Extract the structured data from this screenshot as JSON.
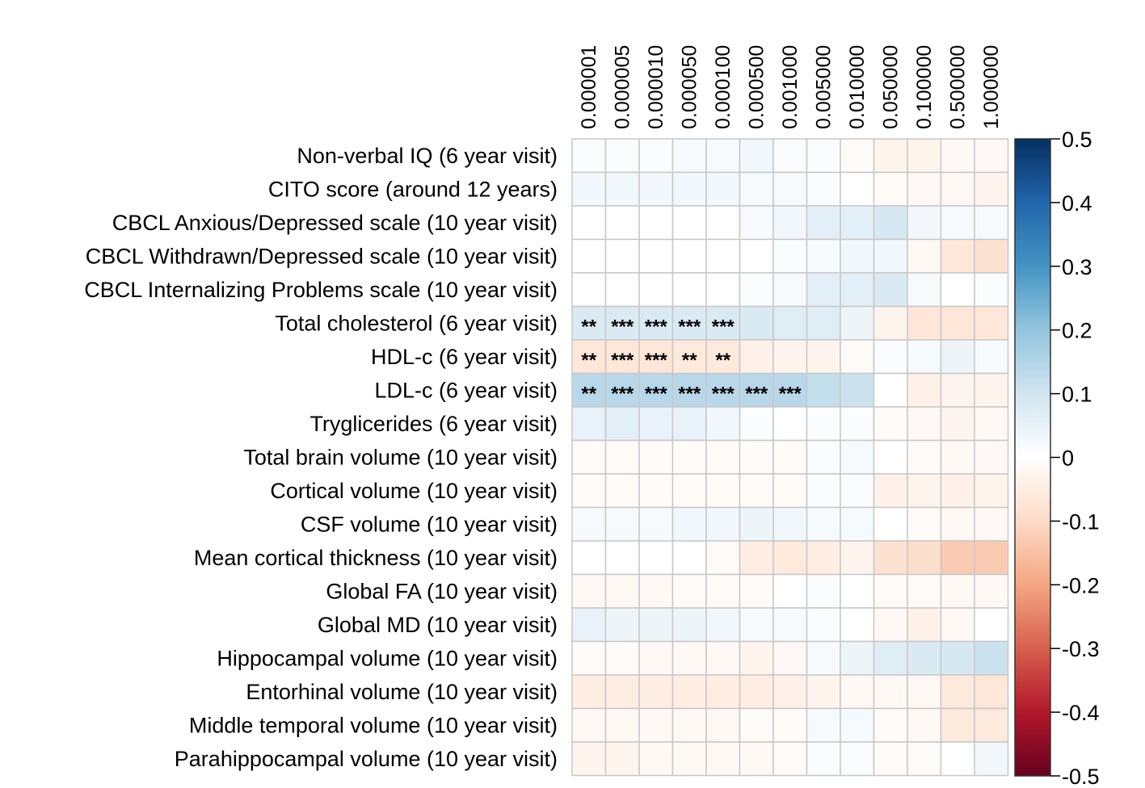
{
  "chart_data": {
    "type": "heatmap",
    "title": "",
    "xlabel": "",
    "ylabel": "",
    "columns": [
      "0.000001",
      "0.000005",
      "0.000010",
      "0.000050",
      "0.000100",
      "0.000500",
      "0.001000",
      "0.005000",
      "0.010000",
      "0.050000",
      "0.100000",
      "0.500000",
      "1.000000"
    ],
    "rows": [
      "Non-verbal IQ (6 year visit)",
      "CITO score (around 12 years)",
      "CBCL Anxious/Depressed scale (10 year visit)",
      "CBCL Withdrawn/Depressed scale (10 year visit)",
      "CBCL Internalizing Problems scale (10 year visit)",
      "Total cholesterol (6 year visit)",
      "HDL-c (6 year visit)",
      "LDL-c (6 year visit)",
      "Tryglicerides (6 year visit)",
      "Total brain volume (10 year visit)",
      "Cortical volume (10 year visit)",
      "CSF volume (10 year visit)",
      "Mean cortical thickness (10 year visit)",
      "Global FA (10 year visit)",
      "Global MD (10 year visit)",
      "Hippocampal volume (10 year visit)",
      "Entorhinal volume (10 year visit)",
      "Middle temporal volume (10 year visit)",
      "Parahippocampal volume (10 year visit)"
    ],
    "values": [
      [
        0.01,
        0.01,
        0.01,
        0.02,
        0.02,
        0.03,
        0.01,
        0.01,
        -0.01,
        -0.03,
        -0.03,
        -0.02,
        -0.02
      ],
      [
        0.03,
        0.03,
        0.03,
        0.03,
        0.03,
        0.02,
        0.02,
        0.01,
        0.0,
        -0.01,
        -0.02,
        -0.02,
        -0.03
      ],
      [
        0.0,
        0.0,
        0.0,
        0.0,
        0.0,
        0.02,
        0.03,
        0.06,
        0.06,
        0.09,
        0.03,
        0.02,
        0.02
      ],
      [
        0.0,
        0.0,
        0.0,
        0.0,
        0.0,
        0.0,
        0.01,
        0.02,
        0.03,
        0.03,
        -0.02,
        -0.07,
        -0.08
      ],
      [
        0.0,
        0.0,
        0.0,
        0.0,
        0.0,
        0.01,
        0.02,
        0.06,
        0.06,
        0.08,
        0.02,
        0.0,
        0.01
      ],
      [
        0.08,
        0.08,
        0.08,
        0.08,
        0.08,
        0.08,
        0.07,
        0.07,
        0.04,
        -0.03,
        -0.07,
        -0.07,
        -0.07
      ],
      [
        -0.07,
        -0.07,
        -0.07,
        -0.06,
        -0.06,
        -0.04,
        -0.03,
        -0.03,
        -0.01,
        0.01,
        0.02,
        0.04,
        0.02
      ],
      [
        0.14,
        0.14,
        0.14,
        0.14,
        0.14,
        0.14,
        0.14,
        0.12,
        0.11,
        0.0,
        -0.04,
        -0.03,
        -0.03
      ],
      [
        0.05,
        0.06,
        0.05,
        0.05,
        0.03,
        0.01,
        0.0,
        0.01,
        0.01,
        -0.01,
        -0.02,
        -0.03,
        -0.02
      ],
      [
        -0.01,
        -0.01,
        -0.01,
        -0.01,
        -0.01,
        -0.01,
        -0.01,
        0.01,
        0.02,
        0.0,
        -0.01,
        -0.02,
        -0.02
      ],
      [
        -0.01,
        -0.01,
        -0.01,
        -0.01,
        -0.01,
        -0.01,
        -0.01,
        0.01,
        0.01,
        -0.04,
        -0.03,
        -0.04,
        -0.03
      ],
      [
        0.02,
        0.02,
        0.02,
        0.03,
        0.03,
        0.04,
        0.03,
        0.02,
        0.02,
        0.0,
        -0.01,
        -0.02,
        -0.02
      ],
      [
        0.0,
        0.0,
        0.0,
        0.0,
        -0.01,
        -0.05,
        -0.06,
        -0.05,
        -0.03,
        -0.08,
        -0.09,
        -0.13,
        -0.13
      ],
      [
        -0.02,
        -0.02,
        -0.02,
        -0.01,
        -0.01,
        -0.01,
        0.0,
        0.01,
        0.0,
        -0.01,
        -0.01,
        -0.02,
        -0.02
      ],
      [
        0.05,
        0.04,
        0.04,
        0.04,
        0.03,
        0.02,
        0.02,
        0.01,
        0.0,
        -0.02,
        -0.04,
        -0.02,
        0.0
      ],
      [
        -0.01,
        -0.01,
        -0.02,
        -0.02,
        -0.02,
        -0.03,
        -0.02,
        0.02,
        0.04,
        0.07,
        0.08,
        0.09,
        0.11
      ],
      [
        -0.05,
        -0.05,
        -0.05,
        -0.05,
        -0.05,
        -0.05,
        -0.04,
        -0.03,
        -0.02,
        -0.02,
        -0.02,
        -0.06,
        -0.07
      ],
      [
        -0.02,
        -0.02,
        -0.02,
        -0.02,
        -0.02,
        -0.01,
        -0.01,
        0.02,
        0.02,
        -0.01,
        -0.02,
        -0.06,
        -0.06
      ],
      [
        -0.03,
        -0.03,
        -0.02,
        -0.02,
        -0.02,
        -0.02,
        -0.01,
        0.01,
        0.01,
        -0.01,
        -0.01,
        0.0,
        0.03
      ]
    ],
    "stars": [
      {
        "row": 5,
        "col": 0,
        "text": "**"
      },
      {
        "row": 5,
        "col": 1,
        "text": "***"
      },
      {
        "row": 5,
        "col": 2,
        "text": "***"
      },
      {
        "row": 5,
        "col": 3,
        "text": "***"
      },
      {
        "row": 5,
        "col": 4,
        "text": "***"
      },
      {
        "row": 6,
        "col": 0,
        "text": "**"
      },
      {
        "row": 6,
        "col": 1,
        "text": "***"
      },
      {
        "row": 6,
        "col": 2,
        "text": "***"
      },
      {
        "row": 6,
        "col": 3,
        "text": "**"
      },
      {
        "row": 6,
        "col": 4,
        "text": "**"
      },
      {
        "row": 7,
        "col": 0,
        "text": "**"
      },
      {
        "row": 7,
        "col": 1,
        "text": "***"
      },
      {
        "row": 7,
        "col": 2,
        "text": "***"
      },
      {
        "row": 7,
        "col": 3,
        "text": "***"
      },
      {
        "row": 7,
        "col": 4,
        "text": "***"
      },
      {
        "row": 7,
        "col": 5,
        "text": "***"
      },
      {
        "row": 7,
        "col": 6,
        "text": "***"
      }
    ],
    "colorbar": {
      "range": [
        -0.5,
        0.5
      ],
      "ticks": [
        0.5,
        0.4,
        0.3,
        0.2,
        0.1,
        0,
        -0.1,
        -0.2,
        -0.3,
        -0.4,
        -0.5
      ],
      "tick_labels": [
        "0.5",
        "0.4",
        "0.3",
        "0.2",
        "0.1",
        "0",
        "-0.1",
        "-0.2",
        "-0.3",
        "-0.4",
        "-0.5"
      ],
      "palette": [
        "#67001F",
        "#B2182B",
        "#D6604D",
        "#F4A582",
        "#FDDBC7",
        "#FFFFFF",
        "#D1E5F0",
        "#92C5DE",
        "#4393C3",
        "#2166AC",
        "#053061"
      ]
    },
    "grid": true,
    "legend": "right"
  }
}
